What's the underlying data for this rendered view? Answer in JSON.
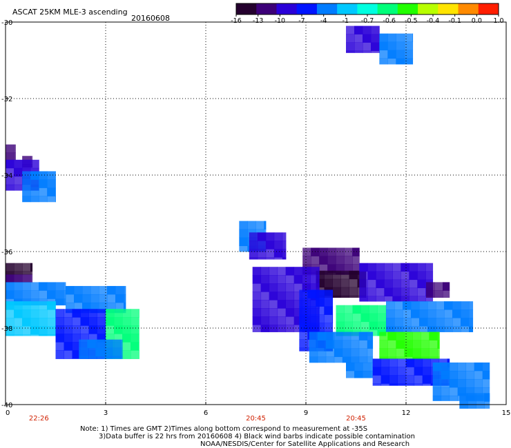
{
  "chart_data": {
    "type": "heatmap",
    "title": "ASCAT 25KM MLE-3 ascending",
    "date": "20160608",
    "xlim": [
      0,
      15
    ],
    "ylim": [
      -40,
      -30
    ],
    "x_ticks": [
      "0",
      "3",
      "6",
      "9",
      "12",
      "15"
    ],
    "y_ticks": [
      "-30",
      "-32",
      "-34",
      "-36",
      "-38",
      "-40"
    ],
    "y_tick_values": [
      -30,
      -32,
      -34,
      -36,
      -38,
      -40
    ],
    "grid": true,
    "time_labels": [
      {
        "x": 1,
        "label": "22:26"
      },
      {
        "x": 7.5,
        "label": "20:45"
      },
      {
        "x": 10.5,
        "label": "20:45"
      }
    ],
    "colorbar": {
      "labels": [
        "-16",
        "-13",
        "-10",
        "-7",
        "-4",
        "-1",
        "-0.7",
        "-0.6",
        "-0.5",
        "-0.4",
        "-0.1",
        "0.0",
        "1.0"
      ],
      "colors": [
        "#24002e",
        "#3c0078",
        "#2a00d8",
        "#0014ff",
        "#007cff",
        "#00c8ff",
        "#00ffe0",
        "#00ff7a",
        "#22ff00",
        "#b8ff00",
        "#ffe400",
        "#ff8a00",
        "#ff1e00"
      ],
      "placement": "top-right"
    },
    "swaths": [
      {
        "level": -8.5,
        "x0": 10.2,
        "x1": 11.2,
        "y0": -30.1,
        "y1": -30.8
      },
      {
        "level": -2.5,
        "x0": 11.2,
        "x1": 12.2,
        "y0": -30.3,
        "y1": -31.1
      },
      {
        "level": -12,
        "x0": 0.0,
        "x1": 0.3,
        "y0": -33.2,
        "y1": -33.6
      },
      {
        "level": -13,
        "x0": 0.5,
        "x1": 0.8,
        "y0": -33.5,
        "y1": -33.8
      },
      {
        "level": -8,
        "x0": 0.0,
        "x1": 1.0,
        "y0": -33.6,
        "y1": -34.4
      },
      {
        "level": -2.5,
        "x0": 0.5,
        "x1": 1.5,
        "y0": -33.9,
        "y1": -34.7
      },
      {
        "level": -16,
        "x0": 0.0,
        "x1": 0.8,
        "y0": -36.3,
        "y1": -36.6
      },
      {
        "level": -12,
        "x0": 0.0,
        "x1": 0.8,
        "y0": -36.6,
        "y1": -36.8
      },
      {
        "level": -4,
        "x0": 0.0,
        "x1": 1.8,
        "y0": -36.8,
        "y1": -37.4
      },
      {
        "level": -2,
        "x0": 1.8,
        "x1": 3.6,
        "y0": -36.9,
        "y1": -37.6
      },
      {
        "level": -0.75,
        "x0": 0.0,
        "x1": 1.5,
        "y0": -37.3,
        "y1": -38.2
      },
      {
        "level": -6,
        "x0": 1.5,
        "x1": 3.0,
        "y0": -37.5,
        "y1": -38.8
      },
      {
        "level": -0.6,
        "x0": 3.0,
        "x1": 4.0,
        "y0": -37.5,
        "y1": -38.8
      },
      {
        "level": -3,
        "x0": 2.2,
        "x1": 3.5,
        "y0": -38.3,
        "y1": -38.8
      },
      {
        "level": -2.5,
        "x0": 7.0,
        "x1": 7.8,
        "y0": -35.2,
        "y1": -36.0
      },
      {
        "level": -8,
        "x0": 7.3,
        "x1": 8.4,
        "y0": -35.5,
        "y1": -36.2
      },
      {
        "level": -12,
        "x0": 8.9,
        "x1": 10.6,
        "y0": -35.9,
        "y1": -36.6
      },
      {
        "level": -14.5,
        "x0": 9.3,
        "x1": 10.8,
        "y0": -36.5,
        "y1": -37.2
      },
      {
        "level": -8,
        "x0": 10.6,
        "x1": 12.8,
        "y0": -36.3,
        "y1": -37.3
      },
      {
        "level": -11,
        "x0": 12.6,
        "x1": 13.3,
        "y0": -36.8,
        "y1": -37.2
      },
      {
        "level": -10,
        "x0": 7.4,
        "x1": 9.4,
        "y0": -36.4,
        "y1": -38.1
      },
      {
        "level": -7,
        "x0": 8.8,
        "x1": 9.8,
        "y0": -37.0,
        "y1": -38.6
      },
      {
        "level": -0.6,
        "x0": 9.9,
        "x1": 11.4,
        "y0": -37.4,
        "y1": -38.2
      },
      {
        "level": -1.5,
        "x0": 11.4,
        "x1": 14.0,
        "y0": -37.3,
        "y1": -38.1
      },
      {
        "level": -0.5,
        "x0": 11.2,
        "x1": 13.0,
        "y0": -38.1,
        "y1": -38.8
      },
      {
        "level": -3,
        "x0": 9.1,
        "x1": 11.0,
        "y0": -38.1,
        "y1": -38.9
      },
      {
        "level": -1.5,
        "x0": 10.2,
        "x1": 11.0,
        "y0": -38.9,
        "y1": -39.3
      },
      {
        "level": -5,
        "x0": 11.0,
        "x1": 13.3,
        "y0": -38.8,
        "y1": -39.5
      },
      {
        "level": -2.5,
        "x0": 12.8,
        "x1": 14.5,
        "y0": -38.9,
        "y1": -39.9
      },
      {
        "level": -3.5,
        "x0": 13.6,
        "x1": 14.5,
        "y0": -39.7,
        "y1": -40.1
      }
    ]
  },
  "notes": {
    "line1": "Note: 1) Times are GMT 2)Times along bottom correspond to measurement at -35S",
    "line2": "3)Data buffer is 22 hrs from 20160608 4) Black wind barbs indicate possible contamination",
    "line3": "NOAA/NESDIS/Center for Satellite Applications and Research"
  }
}
